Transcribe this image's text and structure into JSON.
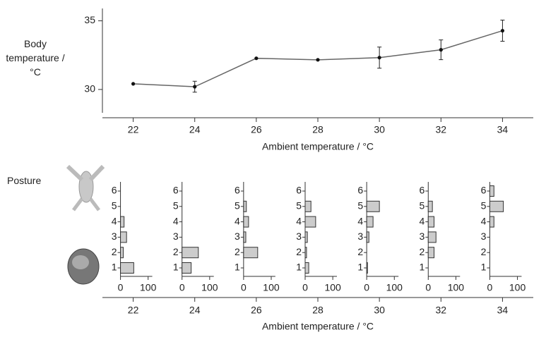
{
  "chart_data": [
    {
      "type": "line",
      "ylabel": "Body temperature / °C",
      "xlabel": "Ambient temperature / °C",
      "x": [
        22,
        24,
        26,
        28,
        30,
        32,
        34
      ],
      "values": [
        30.41,
        30.2,
        32.27,
        32.16,
        32.32,
        32.89,
        34.28
      ],
      "errors": [
        0,
        0.4,
        0,
        0,
        0.77,
        0.72,
        0.77
      ],
      "color": "#666666",
      "xlim": [
        21,
        35
      ],
      "xticks": [
        22,
        24,
        26,
        28,
        30,
        32,
        34
      ],
      "ylim": [
        28.3,
        35.9
      ],
      "yticks": [
        30,
        35
      ]
    },
    {
      "type": "bar",
      "orientation": "horizontal",
      "ylabel": "Posture",
      "xlabel": "Ambient temperature / °C",
      "groups": [
        22,
        24,
        26,
        28,
        30,
        32,
        34
      ],
      "grouplim": [
        21,
        35
      ],
      "categories": [
        1,
        2,
        3,
        4,
        5,
        6
      ],
      "panels": [
        [
          48,
          10,
          22,
          13,
          0,
          0
        ],
        [
          33,
          59,
          0,
          0,
          0,
          0
        ],
        [
          0,
          51,
          8,
          18,
          10,
          0
        ],
        [
          13,
          5,
          8,
          38,
          21,
          0
        ],
        [
          3,
          0,
          8,
          23,
          46,
          0
        ],
        [
          0,
          21,
          28,
          21,
          15,
          0
        ],
        [
          0,
          0,
          0,
          15,
          49,
          15
        ]
      ],
      "color": "#cccccc",
      "xlim": [
        0,
        115
      ],
      "xticks": [
        0,
        100
      ]
    }
  ]
}
